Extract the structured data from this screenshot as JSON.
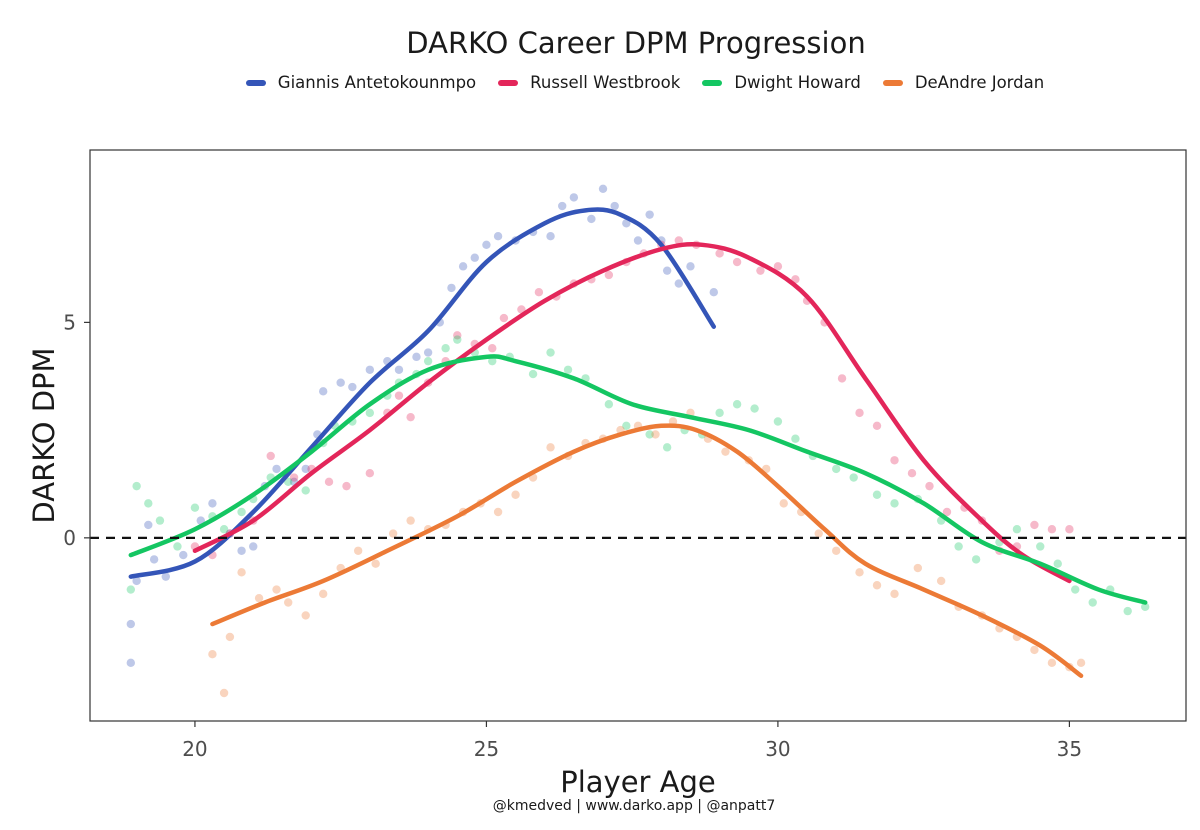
{
  "chart_data": {
    "type": "scatter",
    "title": "DARKO Career DPM Progression",
    "xlabel": "Player Age",
    "ylabel": "DARKO DPM",
    "caption": "@kmedved | www.darko.app | @anpatt7",
    "xlim": [
      18.2,
      37.0
    ],
    "ylim": [
      -4.25,
      9.0
    ],
    "xticks": [
      20,
      25,
      30,
      35
    ],
    "yticks": [
      0,
      5
    ],
    "reference_line_y": 0,
    "legend_position": "top",
    "series": [
      {
        "name": "Giannis Antetokounmpo",
        "color": "#3455b8",
        "smooth": [
          [
            18.9,
            -0.9
          ],
          [
            20,
            -0.55
          ],
          [
            21,
            0.6
          ],
          [
            22,
            2.1
          ],
          [
            23,
            3.6
          ],
          [
            24,
            4.8
          ],
          [
            25,
            6.4
          ],
          [
            26,
            7.3
          ],
          [
            26.7,
            7.6
          ],
          [
            27.3,
            7.5
          ],
          [
            28,
            6.8
          ],
          [
            28.9,
            4.9
          ]
        ],
        "points": [
          [
            18.9,
            -2.9
          ],
          [
            18.9,
            -2.0
          ],
          [
            19.0,
            -1.0
          ],
          [
            19.2,
            0.3
          ],
          [
            19.3,
            -0.5
          ],
          [
            19.5,
            -0.9
          ],
          [
            19.8,
            -0.4
          ],
          [
            20.1,
            0.4
          ],
          [
            20.3,
            0.8
          ],
          [
            20.6,
            0.1
          ],
          [
            20.8,
            -0.3
          ],
          [
            21.0,
            -0.2
          ],
          [
            21.2,
            1.2
          ],
          [
            21.4,
            1.6
          ],
          [
            21.7,
            1.3
          ],
          [
            21.9,
            1.6
          ],
          [
            22.1,
            2.4
          ],
          [
            22.2,
            3.4
          ],
          [
            22.5,
            3.6
          ],
          [
            22.7,
            3.5
          ],
          [
            23.0,
            3.9
          ],
          [
            23.3,
            4.1
          ],
          [
            23.5,
            3.9
          ],
          [
            23.8,
            4.2
          ],
          [
            24.0,
            4.3
          ],
          [
            24.2,
            5.0
          ],
          [
            24.4,
            5.8
          ],
          [
            24.6,
            6.3
          ],
          [
            24.8,
            6.5
          ],
          [
            25.0,
            6.8
          ],
          [
            25.2,
            7.0
          ],
          [
            25.5,
            6.9
          ],
          [
            25.8,
            7.1
          ],
          [
            26.1,
            7.0
          ],
          [
            26.3,
            7.7
          ],
          [
            26.5,
            7.9
          ],
          [
            26.8,
            7.4
          ],
          [
            27.0,
            8.1
          ],
          [
            27.2,
            7.7
          ],
          [
            27.4,
            7.3
          ],
          [
            27.6,
            6.9
          ],
          [
            27.8,
            7.5
          ],
          [
            28.0,
            6.9
          ],
          [
            28.1,
            6.2
          ],
          [
            28.3,
            5.9
          ],
          [
            28.5,
            6.3
          ],
          [
            28.9,
            5.7
          ]
        ]
      },
      {
        "name": "Russell Westbrook",
        "color": "#e3265a",
        "smooth": [
          [
            20,
            -0.3
          ],
          [
            21,
            0.4
          ],
          [
            22,
            1.5
          ],
          [
            23,
            2.5
          ],
          [
            24,
            3.6
          ],
          [
            25,
            4.6
          ],
          [
            26,
            5.5
          ],
          [
            27,
            6.2
          ],
          [
            28,
            6.7
          ],
          [
            28.7,
            6.8
          ],
          [
            29.5,
            6.5
          ],
          [
            30.5,
            5.6
          ],
          [
            31.5,
            3.7
          ],
          [
            32.5,
            1.8
          ],
          [
            33.5,
            0.4
          ],
          [
            34.2,
            -0.4
          ],
          [
            35,
            -1.0
          ]
        ],
        "points": [
          [
            20.0,
            -0.2
          ],
          [
            20.3,
            -0.4
          ],
          [
            20.6,
            0.1
          ],
          [
            21.0,
            0.4
          ],
          [
            21.3,
            1.9
          ],
          [
            21.7,
            1.4
          ],
          [
            22.0,
            1.6
          ],
          [
            22.3,
            1.3
          ],
          [
            22.6,
            1.2
          ],
          [
            23.0,
            1.5
          ],
          [
            23.3,
            2.9
          ],
          [
            23.5,
            3.3
          ],
          [
            23.7,
            2.8
          ],
          [
            24.0,
            3.6
          ],
          [
            24.3,
            4.1
          ],
          [
            24.5,
            4.7
          ],
          [
            24.8,
            4.5
          ],
          [
            25.1,
            4.4
          ],
          [
            25.3,
            5.1
          ],
          [
            25.6,
            5.3
          ],
          [
            25.9,
            5.7
          ],
          [
            26.2,
            5.6
          ],
          [
            26.5,
            5.9
          ],
          [
            26.8,
            6.0
          ],
          [
            27.1,
            6.1
          ],
          [
            27.4,
            6.4
          ],
          [
            27.7,
            6.6
          ],
          [
            28.0,
            6.8
          ],
          [
            28.3,
            6.9
          ],
          [
            28.6,
            6.8
          ],
          [
            29.0,
            6.6
          ],
          [
            29.3,
            6.4
          ],
          [
            29.7,
            6.2
          ],
          [
            30.0,
            6.3
          ],
          [
            30.3,
            6.0
          ],
          [
            30.5,
            5.5
          ],
          [
            30.8,
            5.0
          ],
          [
            31.1,
            3.7
          ],
          [
            31.4,
            2.9
          ],
          [
            31.7,
            2.6
          ],
          [
            32.0,
            1.8
          ],
          [
            32.3,
            1.5
          ],
          [
            32.6,
            1.2
          ],
          [
            32.9,
            0.6
          ],
          [
            33.2,
            0.7
          ],
          [
            33.5,
            0.4
          ],
          [
            33.8,
            -0.3
          ],
          [
            34.1,
            -0.2
          ],
          [
            34.4,
            0.3
          ],
          [
            34.7,
            0.2
          ],
          [
            35.0,
            0.2
          ]
        ]
      },
      {
        "name": "Dwight Howard",
        "color": "#14c662",
        "smooth": [
          [
            18.9,
            -0.4
          ],
          [
            20,
            0.2
          ],
          [
            21,
            1.0
          ],
          [
            22,
            2.0
          ],
          [
            23,
            3.1
          ],
          [
            24,
            3.9
          ],
          [
            25,
            4.2
          ],
          [
            25.5,
            4.1
          ],
          [
            26.5,
            3.7
          ],
          [
            27.5,
            3.1
          ],
          [
            28.5,
            2.8
          ],
          [
            29.5,
            2.5
          ],
          [
            30.5,
            2.0
          ],
          [
            31.5,
            1.5
          ],
          [
            32.5,
            0.8
          ],
          [
            33.5,
            -0.1
          ],
          [
            34.5,
            -0.6
          ],
          [
            35.5,
            -1.2
          ],
          [
            36.3,
            -1.5
          ]
        ],
        "points": [
          [
            18.9,
            -1.2
          ],
          [
            19.0,
            1.2
          ],
          [
            19.2,
            0.8
          ],
          [
            19.4,
            0.4
          ],
          [
            19.7,
            -0.2
          ],
          [
            20.0,
            0.7
          ],
          [
            20.3,
            0.5
          ],
          [
            20.5,
            0.2
          ],
          [
            20.8,
            0.6
          ],
          [
            21.0,
            0.9
          ],
          [
            21.3,
            1.4
          ],
          [
            21.6,
            1.3
          ],
          [
            21.9,
            1.1
          ],
          [
            22.2,
            2.2
          ],
          [
            22.4,
            2.6
          ],
          [
            22.7,
            2.7
          ],
          [
            23.0,
            2.9
          ],
          [
            23.3,
            3.3
          ],
          [
            23.5,
            3.6
          ],
          [
            23.8,
            3.8
          ],
          [
            24.0,
            4.1
          ],
          [
            24.3,
            4.4
          ],
          [
            24.5,
            4.6
          ],
          [
            24.8,
            4.3
          ],
          [
            25.1,
            4.1
          ],
          [
            25.4,
            4.2
          ],
          [
            25.8,
            3.8
          ],
          [
            26.1,
            4.3
          ],
          [
            26.4,
            3.9
          ],
          [
            26.7,
            3.7
          ],
          [
            27.1,
            3.1
          ],
          [
            27.4,
            2.6
          ],
          [
            27.8,
            2.4
          ],
          [
            28.1,
            2.1
          ],
          [
            28.4,
            2.5
          ],
          [
            28.7,
            2.4
          ],
          [
            29.0,
            2.9
          ],
          [
            29.3,
            3.1
          ],
          [
            29.6,
            3.0
          ],
          [
            30.0,
            2.7
          ],
          [
            30.3,
            2.3
          ],
          [
            30.6,
            1.9
          ],
          [
            31.0,
            1.6
          ],
          [
            31.3,
            1.4
          ],
          [
            31.7,
            1.0
          ],
          [
            32.0,
            0.8
          ],
          [
            32.4,
            0.9
          ],
          [
            32.8,
            0.4
          ],
          [
            33.1,
            -0.2
          ],
          [
            33.4,
            -0.5
          ],
          [
            33.8,
            -0.1
          ],
          [
            34.1,
            0.2
          ],
          [
            34.5,
            -0.2
          ],
          [
            34.8,
            -0.6
          ],
          [
            35.1,
            -1.2
          ],
          [
            35.4,
            -1.5
          ],
          [
            35.7,
            -1.2
          ],
          [
            36.0,
            -1.7
          ],
          [
            36.3,
            -1.6
          ]
        ]
      },
      {
        "name": "DeAndre Jordan",
        "color": "#ec7a36",
        "smooth": [
          [
            20.3,
            -2.0
          ],
          [
            21.2,
            -1.5
          ],
          [
            22.2,
            -1.0
          ],
          [
            23.3,
            -0.3
          ],
          [
            24.5,
            0.5
          ],
          [
            25.5,
            1.3
          ],
          [
            26.5,
            2.0
          ],
          [
            27.3,
            2.4
          ],
          [
            28,
            2.6
          ],
          [
            28.6,
            2.5
          ],
          [
            29.3,
            2.0
          ],
          [
            30,
            1.2
          ],
          [
            30.8,
            0.2
          ],
          [
            31.5,
            -0.6
          ],
          [
            32.5,
            -1.2
          ],
          [
            33.5,
            -1.8
          ],
          [
            34.5,
            -2.5
          ],
          [
            35.2,
            -3.2
          ]
        ],
        "points": [
          [
            20.3,
            -2.7
          ],
          [
            20.5,
            -3.6
          ],
          [
            20.6,
            -2.3
          ],
          [
            20.8,
            -0.8
          ],
          [
            21.1,
            -1.4
          ],
          [
            21.4,
            -1.2
          ],
          [
            21.6,
            -1.5
          ],
          [
            21.9,
            -1.8
          ],
          [
            22.2,
            -1.3
          ],
          [
            22.5,
            -0.7
          ],
          [
            22.8,
            -0.3
          ],
          [
            23.1,
            -0.6
          ],
          [
            23.4,
            0.1
          ],
          [
            23.7,
            0.4
          ],
          [
            24.0,
            0.2
          ],
          [
            24.3,
            0.3
          ],
          [
            24.6,
            0.6
          ],
          [
            24.9,
            0.8
          ],
          [
            25.2,
            0.6
          ],
          [
            25.5,
            1.0
          ],
          [
            25.8,
            1.4
          ],
          [
            26.1,
            2.1
          ],
          [
            26.4,
            1.9
          ],
          [
            26.7,
            2.2
          ],
          [
            27.0,
            2.3
          ],
          [
            27.3,
            2.5
          ],
          [
            27.6,
            2.6
          ],
          [
            27.9,
            2.4
          ],
          [
            28.2,
            2.7
          ],
          [
            28.5,
            2.9
          ],
          [
            28.8,
            2.3
          ],
          [
            29.1,
            2.0
          ],
          [
            29.5,
            1.8
          ],
          [
            29.8,
            1.6
          ],
          [
            30.1,
            0.8
          ],
          [
            30.4,
            0.6
          ],
          [
            30.7,
            0.1
          ],
          [
            31.0,
            -0.3
          ],
          [
            31.4,
            -0.8
          ],
          [
            31.7,
            -1.1
          ],
          [
            32.0,
            -1.3
          ],
          [
            32.4,
            -0.7
          ],
          [
            32.8,
            -1.0
          ],
          [
            33.1,
            -1.6
          ],
          [
            33.5,
            -1.8
          ],
          [
            33.8,
            -2.1
          ],
          [
            34.1,
            -2.3
          ],
          [
            34.4,
            -2.6
          ],
          [
            34.7,
            -2.9
          ],
          [
            35.0,
            -3.0
          ],
          [
            35.2,
            -2.9
          ]
        ]
      }
    ]
  }
}
